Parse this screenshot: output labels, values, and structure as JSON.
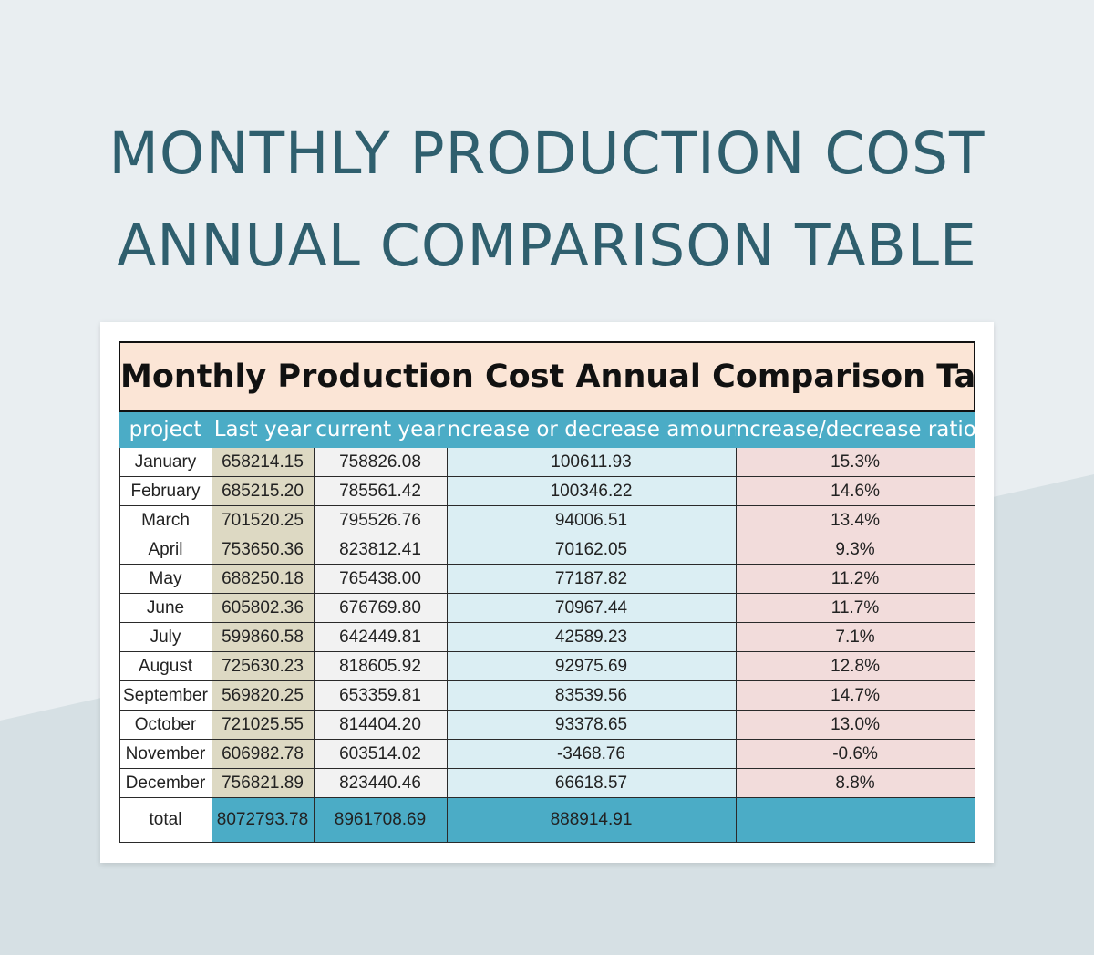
{
  "poster": {
    "title_line1": "MONTHLY PRODUCTION COST",
    "title_line2": "ANNUAL COMPARISON TABLE"
  },
  "sheet": {
    "title": "Monthly Production Cost Annual Comparison Table",
    "headers": [
      "project",
      "Last year",
      "current year",
      "ncrease or decrease amoun",
      "ncrease/decrease ratio"
    ],
    "rows": [
      {
        "month": "January",
        "last": "658214.15",
        "current": "758826.08",
        "diff": "100611.93",
        "ratio": "15.3%"
      },
      {
        "month": "February",
        "last": "685215.20",
        "current": "785561.42",
        "diff": "100346.22",
        "ratio": "14.6%"
      },
      {
        "month": "March",
        "last": "701520.25",
        "current": "795526.76",
        "diff": "94006.51",
        "ratio": "13.4%"
      },
      {
        "month": "April",
        "last": "753650.36",
        "current": "823812.41",
        "diff": "70162.05",
        "ratio": "9.3%"
      },
      {
        "month": "May",
        "last": "688250.18",
        "current": "765438.00",
        "diff": "77187.82",
        "ratio": "11.2%"
      },
      {
        "month": "June",
        "last": "605802.36",
        "current": "676769.80",
        "diff": "70967.44",
        "ratio": "11.7%"
      },
      {
        "month": "July",
        "last": "599860.58",
        "current": "642449.81",
        "diff": "42589.23",
        "ratio": "7.1%"
      },
      {
        "month": "August",
        "last": "725630.23",
        "current": "818605.92",
        "diff": "92975.69",
        "ratio": "12.8%"
      },
      {
        "month": "September",
        "last": "569820.25",
        "current": "653359.81",
        "diff": "83539.56",
        "ratio": "14.7%"
      },
      {
        "month": "October",
        "last": "721025.55",
        "current": "814404.20",
        "diff": "93378.65",
        "ratio": "13.0%"
      },
      {
        "month": "November",
        "last": "606982.78",
        "current": "603514.02",
        "diff": "-3468.76",
        "ratio": "-0.6%"
      },
      {
        "month": "December",
        "last": "756821.89",
        "current": "823440.46",
        "diff": "66618.57",
        "ratio": "8.8%"
      }
    ],
    "total": {
      "label": "total",
      "last": "8072793.78",
      "current": "8961708.69",
      "diff": "888914.91",
      "ratio": ""
    }
  },
  "colors": {
    "background": "#e9eef1",
    "title_text": "#2f5f6e",
    "header_fill": "#4bacc6",
    "title_fill": "#fbe5d6",
    "last_year_fill": "#ddd9c3",
    "current_year_fill": "#f2f2f2",
    "amount_fill": "#dbeef3",
    "ratio_fill": "#f2dcdb"
  }
}
